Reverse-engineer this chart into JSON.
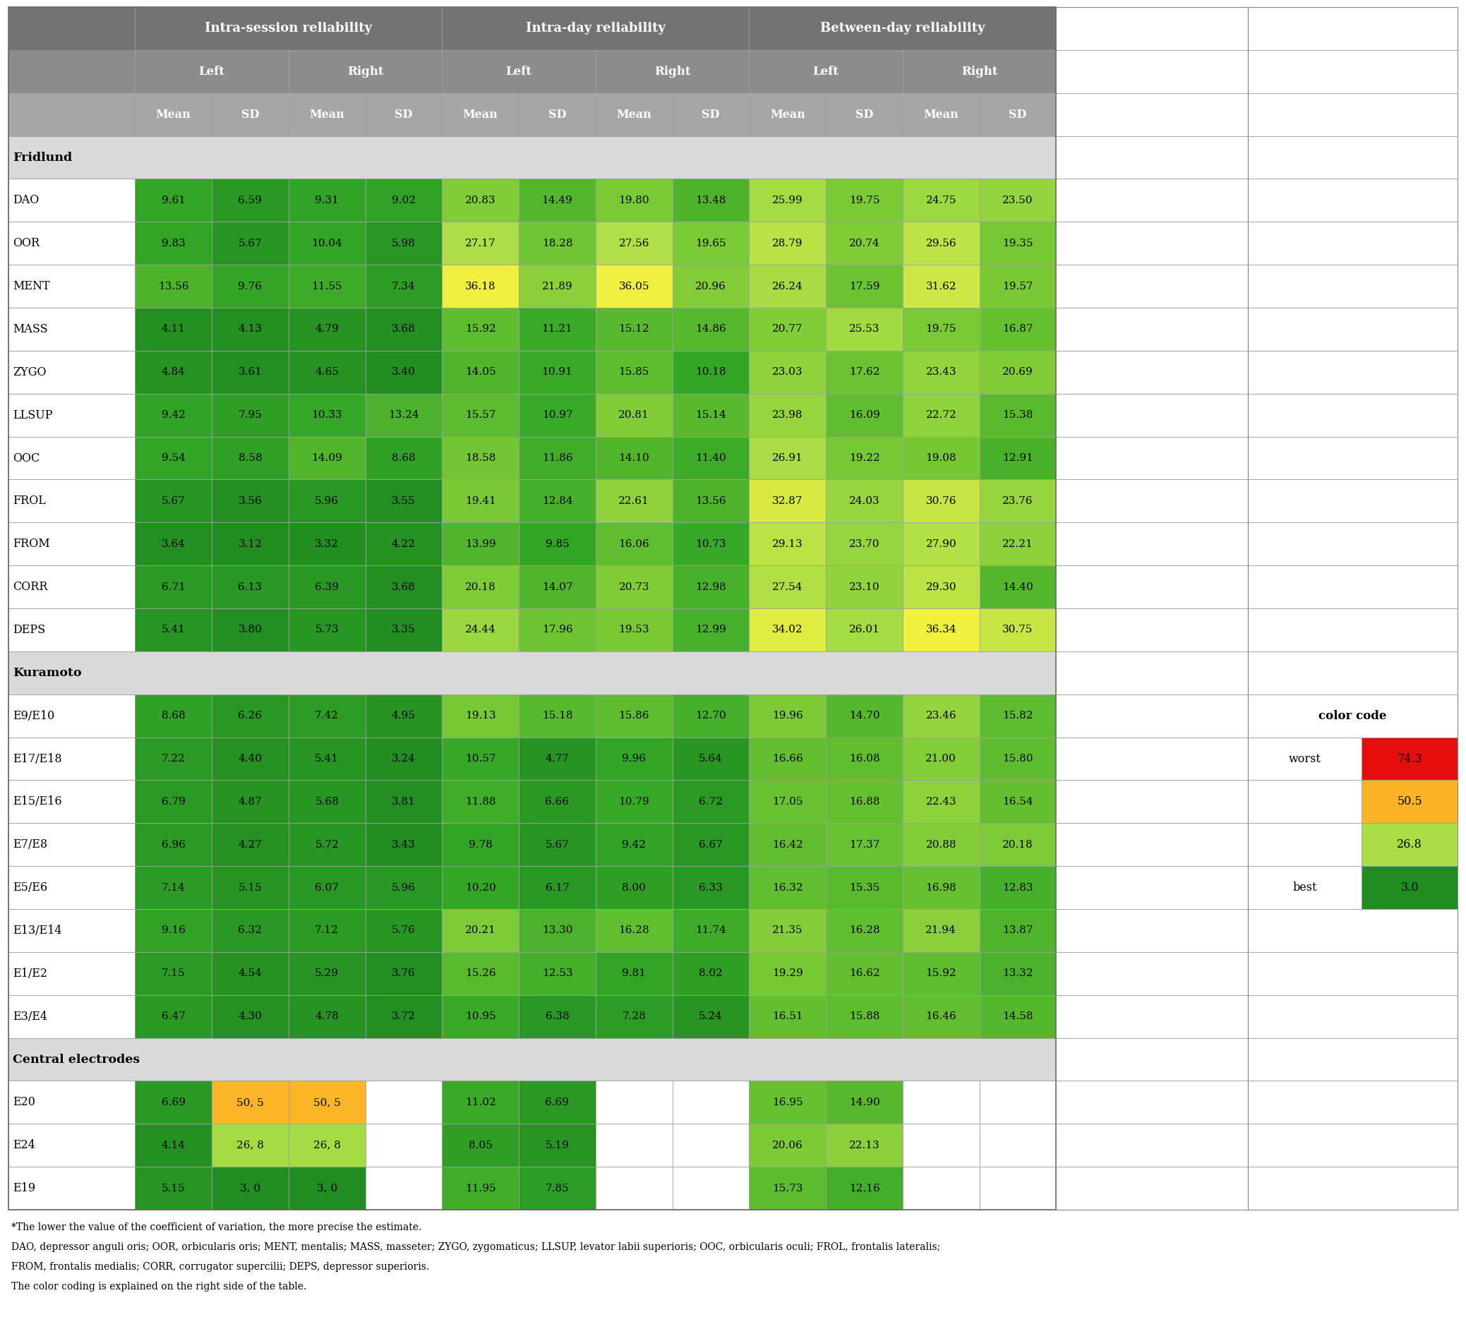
{
  "sections": [
    {
      "name": "Fridlund",
      "rows": [
        {
          "label": "DAO",
          "vals": [
            "9.61",
            "6.59",
            "9.31",
            "9.02",
            "20.83",
            "14.49",
            "19.80",
            "13.48",
            "25.99",
            "19.75",
            "24.75",
            "23.50"
          ]
        },
        {
          "label": "OOR",
          "vals": [
            "9.83",
            "5.67",
            "10.04",
            "5.98",
            "27.17",
            "18.28",
            "27.56",
            "19.65",
            "28.79",
            "20.74",
            "29.56",
            "19.35"
          ]
        },
        {
          "label": "MENT",
          "vals": [
            "13.56",
            "9.76",
            "11.55",
            "7.34",
            "36.18",
            "21.89",
            "36.05",
            "20.96",
            "26.24",
            "17.59",
            "31.62",
            "19.57"
          ]
        },
        {
          "label": "MASS",
          "vals": [
            "4.11",
            "4.13",
            "4.79",
            "3.68",
            "15.92",
            "11.21",
            "15.12",
            "14.86",
            "20.77",
            "25.53",
            "19.75",
            "16.87"
          ]
        },
        {
          "label": "ZYGO",
          "vals": [
            "4.84",
            "3.61",
            "4.65",
            "3.40",
            "14.05",
            "10.91",
            "15.85",
            "10.18",
            "23.03",
            "17.62",
            "23.43",
            "20.69"
          ]
        },
        {
          "label": "LLSUP",
          "vals": [
            "9.42",
            "7.95",
            "10.33",
            "13.24",
            "15.57",
            "10.97",
            "20.81",
            "15.14",
            "23.98",
            "16.09",
            "22.72",
            "15.38"
          ]
        },
        {
          "label": "OOC",
          "vals": [
            "9.54",
            "8.58",
            "14.09",
            "8.68",
            "18.58",
            "11.86",
            "14.10",
            "11.40",
            "26.91",
            "19.22",
            "19.08",
            "12.91"
          ]
        },
        {
          "label": "FROL",
          "vals": [
            "5.67",
            "3.56",
            "5.96",
            "3.55",
            "19.41",
            "12.84",
            "22.61",
            "13.56",
            "32.87",
            "24.03",
            "30.76",
            "23.76"
          ]
        },
        {
          "label": "FROM",
          "vals": [
            "3.64",
            "3.12",
            "3.32",
            "4.22",
            "13.99",
            "9.85",
            "16.06",
            "10.73",
            "29.13",
            "23.70",
            "27.90",
            "22.21"
          ]
        },
        {
          "label": "CORR",
          "vals": [
            "6.71",
            "6.13",
            "6.39",
            "3.68",
            "20.18",
            "14.07",
            "20.73",
            "12.98",
            "27.54",
            "23.10",
            "29.30",
            "14.40"
          ]
        },
        {
          "label": "DEPS",
          "vals": [
            "5.41",
            "3.80",
            "5.73",
            "3.35",
            "24.44",
            "17.96",
            "19.53",
            "12.99",
            "34.02",
            "26.01",
            "36.34",
            "30.75"
          ]
        }
      ]
    },
    {
      "name": "Kuramoto",
      "rows": [
        {
          "label": "E9/E10",
          "vals": [
            "8.68",
            "6.26",
            "7.42",
            "4.95",
            "19.13",
            "15.18",
            "15.86",
            "12.70",
            "19.96",
            "14.70",
            "23.46",
            "15.82"
          ]
        },
        {
          "label": "E17/E18",
          "vals": [
            "7.22",
            "4.40",
            "5.41",
            "3.24",
            "10.57",
            "4.77",
            "9.96",
            "5.64",
            "16.66",
            "16.08",
            "21.00",
            "15.80"
          ]
        },
        {
          "label": "E15/E16",
          "vals": [
            "6.79",
            "4.87",
            "5.68",
            "3.81",
            "11.88",
            "6.66",
            "10.79",
            "6.72",
            "17.05",
            "16.88",
            "22.43",
            "16.54"
          ]
        },
        {
          "label": "E7/E8",
          "vals": [
            "6.96",
            "4.27",
            "5.72",
            "3.43",
            "9.78",
            "5.67",
            "9.42",
            "6.67",
            "16.42",
            "17.37",
            "20.88",
            "20.18"
          ]
        },
        {
          "label": "E5/E6",
          "vals": [
            "7.14",
            "5.15",
            "6.07",
            "5.96",
            "10.20",
            "6.17",
            "8.00",
            "6.33",
            "16.32",
            "15.35",
            "16.98",
            "12.83"
          ]
        },
        {
          "label": "E13/E14",
          "vals": [
            "9.16",
            "6.32",
            "7.12",
            "5.76",
            "20.21",
            "13.30",
            "16.28",
            "11.74",
            "21.35",
            "16.28",
            "21.94",
            "13.87"
          ]
        },
        {
          "label": "E1/E2",
          "vals": [
            "7.15",
            "4.54",
            "5.29",
            "3.76",
            "15.26",
            "12.53",
            "9.81",
            "8.02",
            "19.29",
            "16.62",
            "15.92",
            "13.32"
          ]
        },
        {
          "label": "E3/E4",
          "vals": [
            "6.47",
            "4.30",
            "4.78",
            "3.72",
            "10.95",
            "6.38",
            "7.28",
            "5.24",
            "16.51",
            "15.88",
            "16.46",
            "14.58"
          ]
        }
      ]
    },
    {
      "name": "Central electrodes",
      "rows": [
        {
          "label": "E20",
          "vals": [
            "6.69",
            "50, 5",
            "50, 5",
            null,
            "11.02",
            "6.69",
            null,
            null,
            "16.95",
            "14.90",
            null,
            null
          ],
          "numeric": [
            6.69,
            50.0,
            50.0,
            null,
            11.02,
            6.69,
            null,
            null,
            16.95,
            14.9,
            null,
            null
          ]
        },
        {
          "label": "E24",
          "vals": [
            "4.14",
            "26, 8",
            "26, 8",
            null,
            "8.05",
            "5.19",
            null,
            null,
            "20.06",
            "22.13",
            null,
            null
          ],
          "numeric": [
            4.14,
            26.0,
            26.0,
            null,
            8.05,
            5.19,
            null,
            null,
            20.06,
            22.13,
            null,
            null
          ]
        },
        {
          "label": "E19",
          "vals": [
            "5.15",
            "3, 0",
            "3, 0",
            null,
            "11.95",
            "7.85",
            null,
            null,
            "15.73",
            "12.16",
            null,
            null
          ],
          "numeric": [
            5.15,
            3.0,
            3.0,
            null,
            11.95,
            7.85,
            null,
            null,
            15.73,
            12.16,
            null,
            null
          ]
        }
      ]
    }
  ],
  "color_code_values": [
    74.3,
    50.5,
    26.8,
    3.0
  ],
  "color_code_labels": [
    "worst",
    "",
    "",
    "best"
  ],
  "footnotes": [
    "*The lower the value of the coefficient of variation, the more precise the estimate.",
    "DAO, depressor anguli oris; OOR, orbicularis oris; MENT, mentalis; MASS, masseter; ZYGO, zygomaticus; LLSUP, levator labii superioris; OOC, orbicularis oculi; FROL, frontalis lateralis;",
    "FROM, frontalis medialis; CORR, corrugator supercilii; DEPS, depressor superioris.",
    "The color coding is explained on the right side of the table."
  ],
  "header_gray1": "#737373",
  "header_gray2": "#8c8c8c",
  "header_gray3": "#a6a6a6",
  "section_gray": "#d9d9d9",
  "border_color": "#a0a0a0",
  "text_white": "#ffffff",
  "text_black": "#1a1a1a"
}
